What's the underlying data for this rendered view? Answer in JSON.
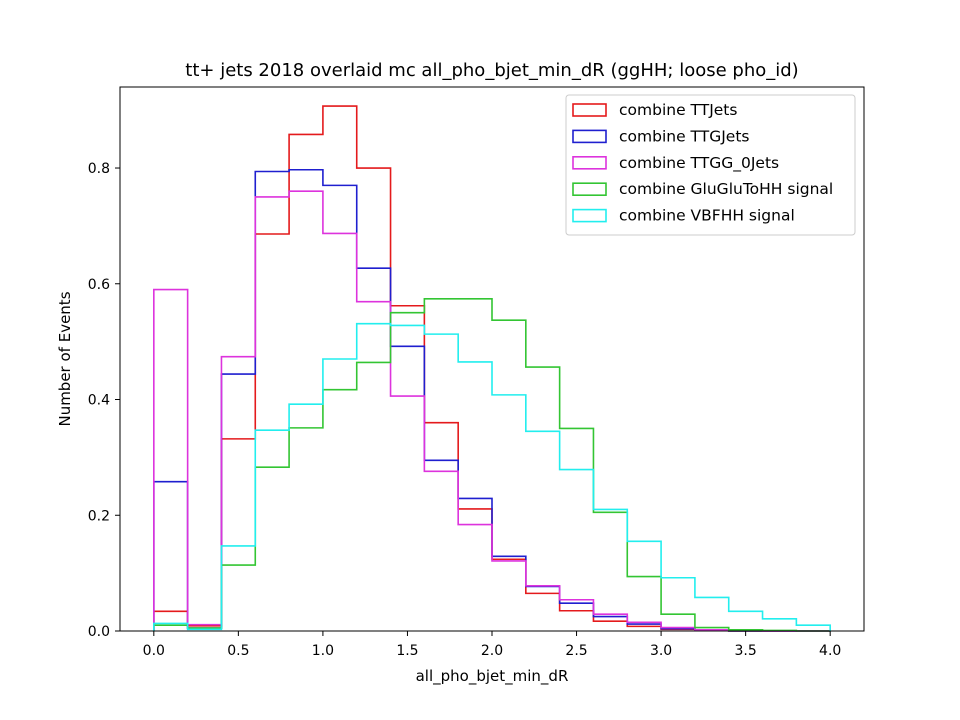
{
  "chart_data": {
    "type": "histogram",
    "title": "tt+ jets 2018 overlaid mc all_pho_bjet_min_dR (ggHH; loose pho_id)",
    "xlabel": "all_pho_bjet_min_dR",
    "ylabel": "Number of Events",
    "xlim": [
      -0.2,
      4.2
    ],
    "ylim": [
      0,
      0.94
    ],
    "xticks": [
      0.0,
      0.5,
      1.0,
      1.5,
      2.0,
      2.5,
      3.0,
      3.5,
      4.0
    ],
    "xtick_labels": [
      "0.0",
      "0.5",
      "1.0",
      "1.5",
      "2.0",
      "2.5",
      "3.0",
      "3.5",
      "4.0"
    ],
    "yticks": [
      0.0,
      0.2,
      0.4,
      0.6,
      0.8
    ],
    "ytick_labels": [
      "0.0",
      "0.2",
      "0.4",
      "0.6",
      "0.8"
    ],
    "grid": false,
    "legend_position": "top-right",
    "bin_edges": [
      0.0,
      0.2,
      0.4,
      0.6,
      0.8,
      1.0,
      1.2,
      1.4,
      1.6,
      1.8,
      2.0,
      2.2,
      2.4,
      2.6,
      2.8,
      3.0,
      3.2,
      3.4,
      3.6,
      3.8,
      4.0
    ],
    "series": [
      {
        "name": "combine TTJets",
        "color": "#e41a1c",
        "values": [
          0.034,
          0.009,
          0.332,
          0.686,
          0.858,
          0.907,
          0.8,
          0.562,
          0.36,
          0.211,
          0.124,
          0.065,
          0.035,
          0.017,
          0.008,
          0.003,
          0.001,
          0.0,
          0.0,
          0.0
        ]
      },
      {
        "name": "combine TTGJets",
        "color": "#1f1fcf",
        "values": [
          0.258,
          0.005,
          0.444,
          0.794,
          0.797,
          0.77,
          0.627,
          0.492,
          0.295,
          0.229,
          0.129,
          0.077,
          0.048,
          0.025,
          0.012,
          0.004,
          0.001,
          0.0,
          0.0,
          0.0
        ]
      },
      {
        "name": "combine TTGG_0Jets",
        "color": "#dd33dd",
        "values": [
          0.59,
          0.011,
          0.474,
          0.75,
          0.76,
          0.687,
          0.569,
          0.406,
          0.276,
          0.184,
          0.121,
          0.078,
          0.054,
          0.029,
          0.015,
          0.006,
          0.002,
          0.001,
          0.0,
          0.0
        ]
      },
      {
        "name": "combine GluGluToHH signal",
        "color": "#33c533",
        "values": [
          0.01,
          0.005,
          0.114,
          0.283,
          0.351,
          0.417,
          0.464,
          0.55,
          0.574,
          0.574,
          0.537,
          0.456,
          0.35,
          0.205,
          0.094,
          0.029,
          0.006,
          0.002,
          0.001,
          0.0
        ]
      },
      {
        "name": "combine VBFHH signal",
        "color": "#22eeee",
        "values": [
          0.013,
          0.003,
          0.147,
          0.347,
          0.392,
          0.47,
          0.531,
          0.528,
          0.513,
          0.465,
          0.408,
          0.345,
          0.279,
          0.21,
          0.155,
          0.092,
          0.058,
          0.034,
          0.021,
          0.01
        ]
      }
    ]
  }
}
